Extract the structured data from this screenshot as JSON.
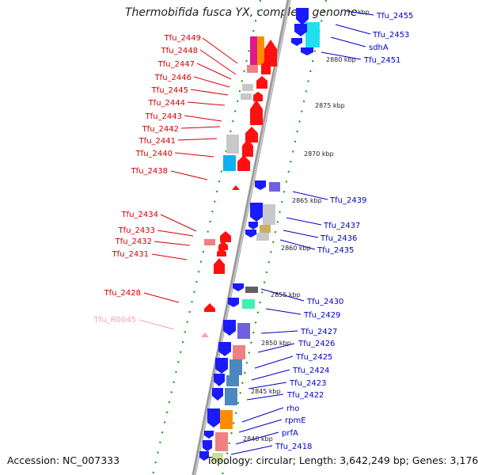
{
  "header": {
    "title": "Thermobifida fusca YX, complete genome"
  },
  "footer": {
    "accession": "Accession: NC_007333",
    "summary": "Topology: circular; Length: 3,642,249 bp; Genes: 3,176"
  },
  "colors": {
    "backbone": "#8a8a8a",
    "left_labels": "#d40000",
    "right_labels": "#0000c8",
    "rna_label": "#f4a0c8",
    "ruler_dots": "#00aa00"
  },
  "scale_labels": [
    "kbp",
    "2880 kbp",
    "2875 kbp",
    "2870 kbp",
    "2865 kbp",
    "2860 kbp",
    "2855 kbp",
    "2850 kbp",
    "2845 kbp",
    "2840 kbp"
  ],
  "left_genes": [
    "Tfu_2449",
    "Tfu_2448",
    "Tfu_2447",
    "Tfu_2446",
    "Tfu_2445",
    "Tfu_2444",
    "Tfu_2443",
    "Tfu_2442",
    "Tfu_2441",
    "Tfu_2440",
    "Tfu_2438",
    "Tfu_2434",
    "Tfu_2433",
    "Tfu_2432",
    "Tfu_2431",
    "Tfu_2428"
  ],
  "rna_genes": [
    "Tfu_R0045"
  ],
  "right_genes": [
    "Tfu_2455",
    "Tfu_2453",
    "sdhA",
    "Tfu_2451",
    "Tfu_2439",
    "Tfu_2437",
    "Tfu_2436",
    "Tfu_2435",
    "Tfu_2430",
    "Tfu_2429",
    "Tfu_2427",
    "Tfu_2426",
    "Tfu_2425",
    "Tfu_2424",
    "Tfu_2423",
    "Tfu_2422",
    "rho",
    "rpmE",
    "prfA",
    "Tfu_2418"
  ]
}
